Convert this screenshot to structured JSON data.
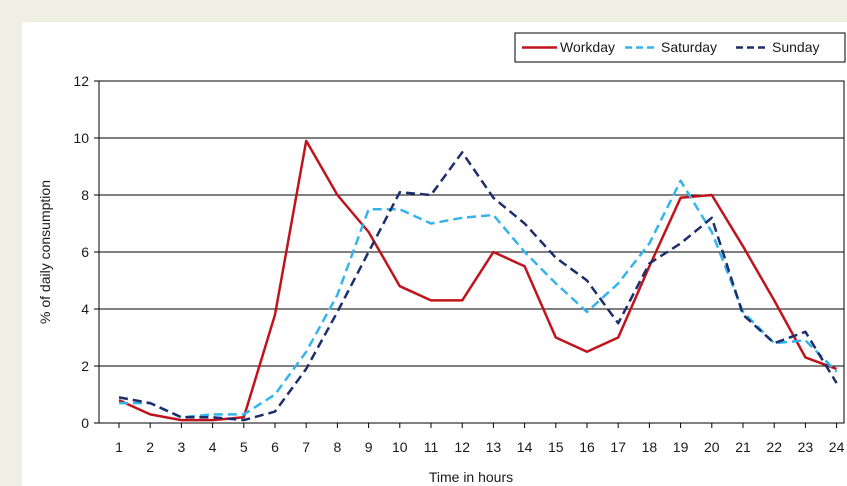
{
  "chart_data": {
    "type": "line",
    "xlabel": "Time in hours",
    "ylabel": "% of daily consumption",
    "x": [
      1,
      2,
      3,
      4,
      5,
      6,
      7,
      8,
      9,
      10,
      11,
      12,
      13,
      14,
      15,
      16,
      17,
      18,
      19,
      20,
      21,
      22,
      23,
      24
    ],
    "ylim": [
      0,
      12
    ],
    "yticks": [
      0,
      2,
      4,
      6,
      8,
      10,
      12
    ],
    "grid": "horizontal",
    "legend_position": "top-right",
    "series": [
      {
        "name": "Workday",
        "color": "#c0141c",
        "style": "solid",
        "values": [
          0.8,
          0.3,
          0.1,
          0.1,
          0.2,
          3.8,
          9.9,
          8.0,
          6.7,
          4.8,
          4.3,
          4.3,
          6.0,
          5.5,
          3.0,
          2.5,
          3.0,
          5.5,
          7.9,
          8.0,
          6.2,
          4.3,
          2.3,
          1.9
        ]
      },
      {
        "name": "Saturday",
        "color": "#33b4ec",
        "style": "dashed",
        "values": [
          0.7,
          0.7,
          0.2,
          0.3,
          0.3,
          1.0,
          2.5,
          4.5,
          7.5,
          7.5,
          7.0,
          7.2,
          7.3,
          6.0,
          4.9,
          3.9,
          4.9,
          6.3,
          8.5,
          6.7,
          3.9,
          2.8,
          2.9,
          1.8
        ]
      },
      {
        "name": "Sunday",
        "color": "#1c2e6b",
        "style": "dashed",
        "values": [
          0.9,
          0.7,
          0.2,
          0.2,
          0.1,
          0.4,
          1.9,
          3.9,
          6.0,
          8.1,
          8.0,
          9.5,
          7.9,
          7.0,
          5.8,
          5.0,
          3.5,
          5.6,
          6.3,
          7.2,
          3.8,
          2.8,
          3.2,
          1.4
        ]
      }
    ]
  }
}
